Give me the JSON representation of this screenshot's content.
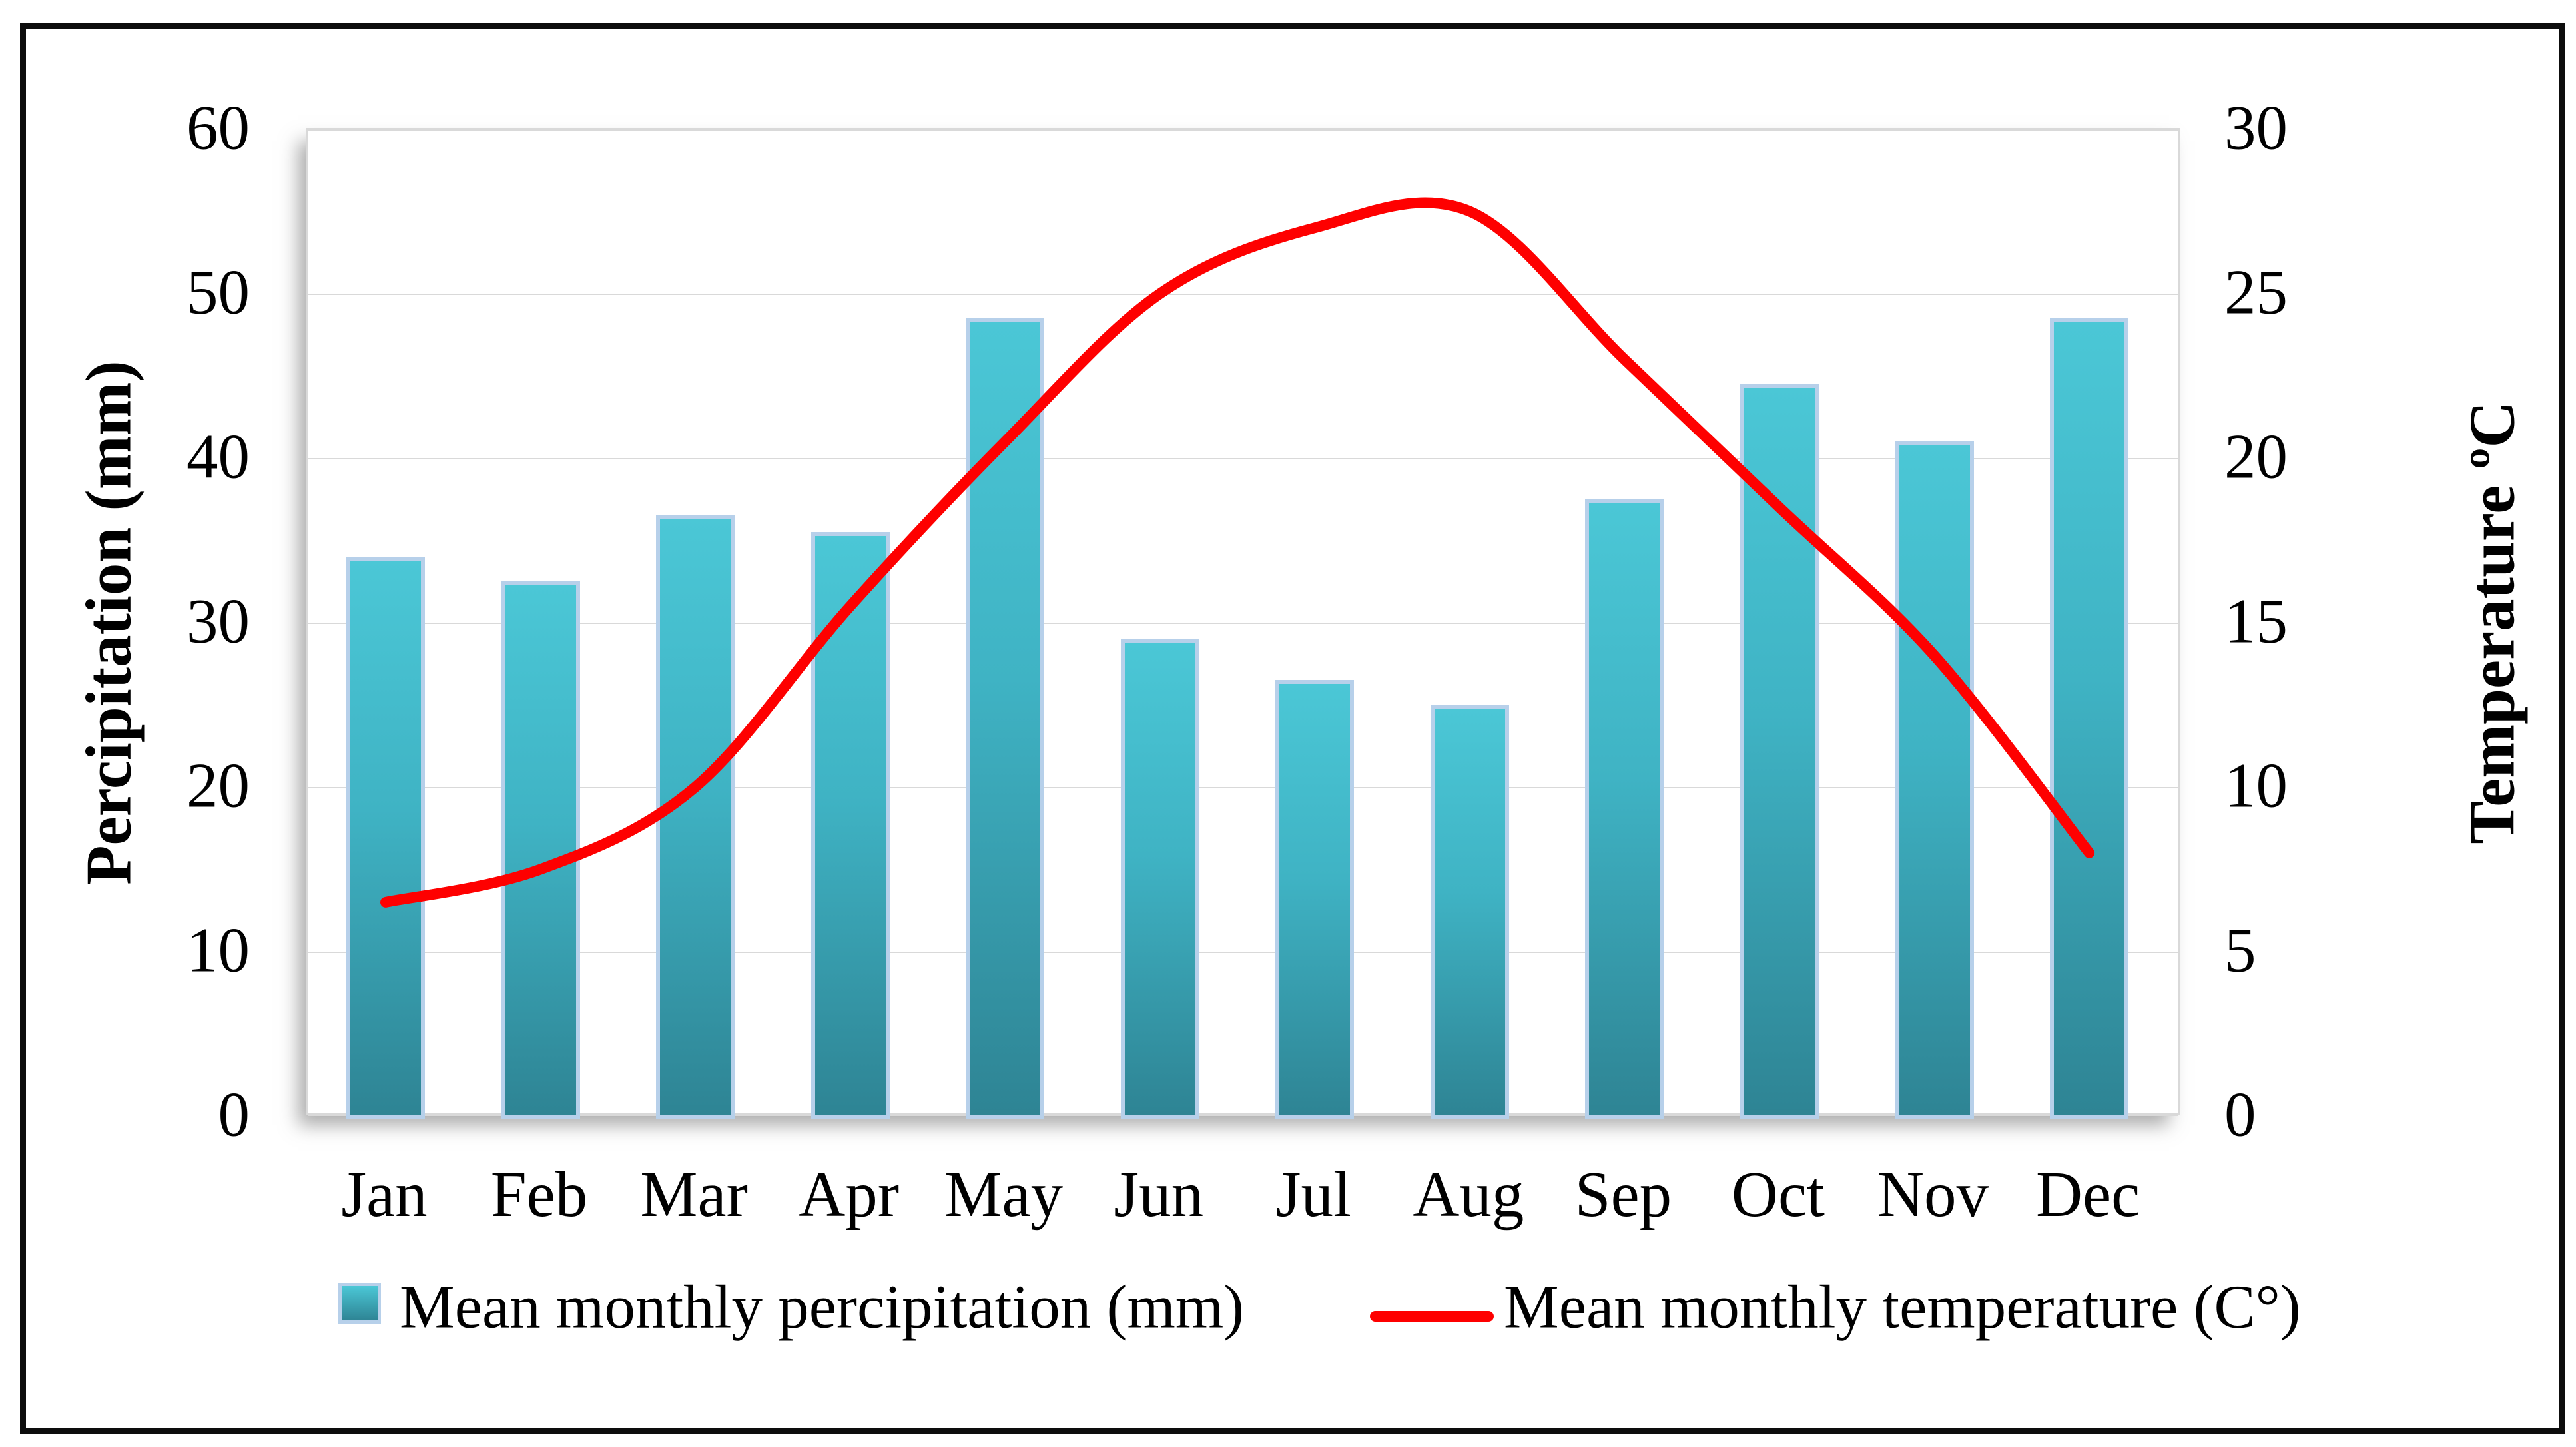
{
  "figure": {
    "left_axis": {
      "title": "Percipitation (mm)",
      "tick_labels": [
        "60",
        "50",
        "40",
        "30",
        "20",
        "10",
        "0"
      ]
    },
    "right_axis": {
      "title": "Temperature ºC",
      "tick_labels": [
        "30",
        "25",
        "20",
        "15",
        "10",
        "5",
        "0"
      ]
    },
    "legend": {
      "precipitation_label": "Mean monthly percipitation (mm)",
      "temperature_label": "Mean monthly temperature (C°)"
    },
    "colors": {
      "bar_fill_top": "#4bc7d6",
      "bar_fill_bottom": "#2e8494",
      "bar_border": "#b7d0ea",
      "temperature_line": "#fe0000",
      "gridline": "#d9d9d9",
      "frame": "#0d0d0d",
      "text": "#000000"
    }
  },
  "chart_data": {
    "type": "combo-bar-line",
    "categories": [
      "Jan",
      "Feb",
      "Mar",
      "Apr",
      "May",
      "Jun",
      "Jul",
      "Aug",
      "Sep",
      "Oct",
      "Nov",
      "Dec"
    ],
    "series": [
      {
        "name": "Mean monthly percipitation (mm)",
        "type": "bar",
        "axis": "left",
        "values": [
          34,
          32.5,
          36.5,
          35.5,
          48.5,
          29,
          26.5,
          25,
          37.5,
          44.5,
          41,
          48.5
        ]
      },
      {
        "name": "Mean monthly temperature (C°)",
        "type": "line",
        "axis": "right",
        "values": [
          6.5,
          7.5,
          10,
          15.5,
          20.5,
          25,
          27,
          27.5,
          23,
          18.5,
          14,
          8
        ]
      }
    ],
    "left_ylabel": "Percipitation (mm)",
    "right_ylabel": "Temperature ºC",
    "left_ylim": [
      0,
      60
    ],
    "left_step": 10,
    "right_ylim": [
      0,
      30
    ],
    "right_step": 5,
    "grid": "horizontal-only",
    "legend_position": "bottom",
    "line_smooth": true
  }
}
